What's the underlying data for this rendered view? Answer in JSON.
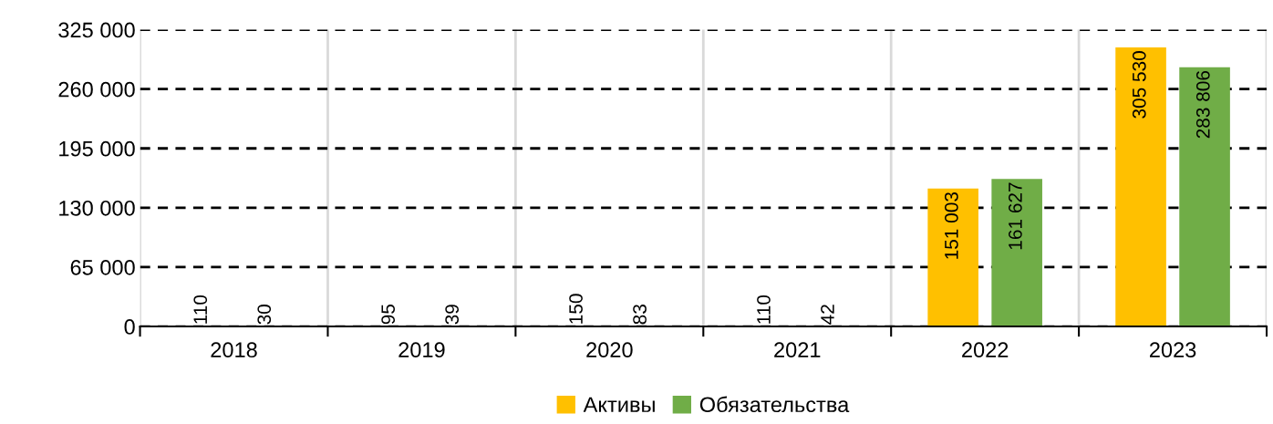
{
  "chart_data": {
    "type": "bar",
    "categories": [
      "2018",
      "2019",
      "2020",
      "2021",
      "2022",
      "2023"
    ],
    "series": [
      {
        "name": "Активы",
        "color": "#ffc000",
        "values": [
          110,
          95,
          150,
          110,
          151003,
          305530
        ]
      },
      {
        "name": "Обязательства",
        "color": "#70ad47",
        "values": [
          30,
          39,
          83,
          42,
          161627,
          283806
        ]
      }
    ],
    "ylim": [
      0,
      325000
    ],
    "yticks": [
      {
        "value": 0,
        "label": "0"
      },
      {
        "value": 65000,
        "label": "65 000"
      },
      {
        "value": 130000,
        "label": "130 000"
      },
      {
        "value": 195000,
        "label": "195 000"
      },
      {
        "value": 260000,
        "label": "260 000"
      },
      {
        "value": 325000,
        "label": "325 000"
      }
    ],
    "grid": true,
    "line_style": "dashed",
    "legend": "bottom",
    "value_labels": [
      [
        "110",
        "95",
        "150",
        "110",
        "151 003",
        "305 530"
      ],
      [
        "30",
        "39",
        "83",
        "42",
        "161 627",
        "283 806"
      ]
    ]
  }
}
